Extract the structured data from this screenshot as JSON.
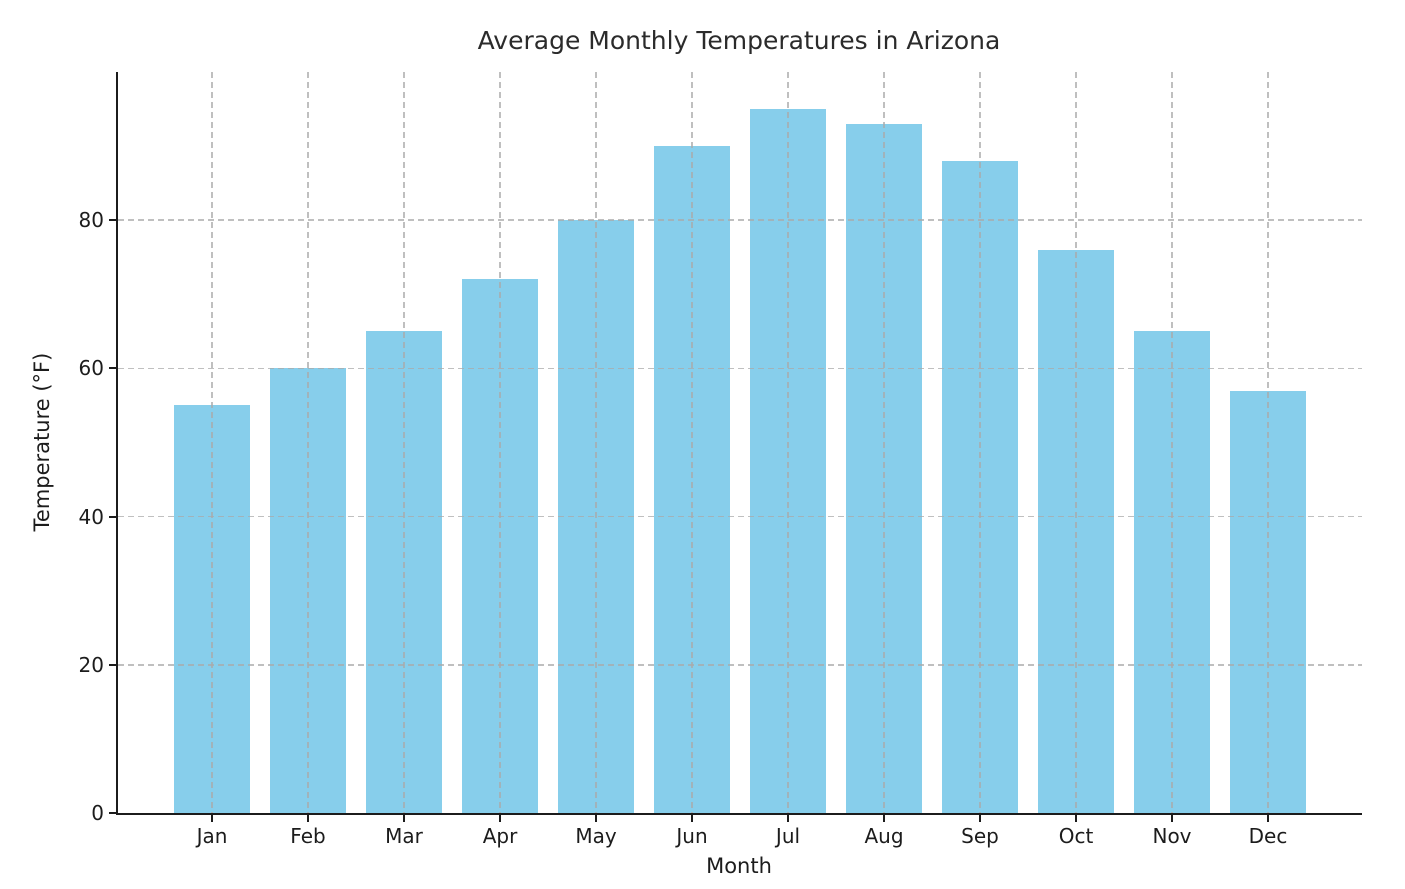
{
  "chart_data": {
    "type": "bar",
    "title": "Average Monthly Temperatures in Arizona",
    "xlabel": "Month",
    "ylabel": "Temperature (°F)",
    "categories": [
      "Jan",
      "Feb",
      "Mar",
      "Apr",
      "May",
      "Jun",
      "Jul",
      "Aug",
      "Sep",
      "Oct",
      "Nov",
      "Dec"
    ],
    "values": [
      55,
      60,
      65,
      72,
      80,
      90,
      95,
      93,
      88,
      76,
      65,
      57
    ],
    "ylim": [
      0,
      100
    ],
    "yticks": [
      0,
      20,
      40,
      60,
      80
    ],
    "bar_color": "#87CEEB",
    "spine_color": "#1c1c1c",
    "grid_style": "dashed",
    "grid_on": true,
    "legend_position": "none"
  }
}
